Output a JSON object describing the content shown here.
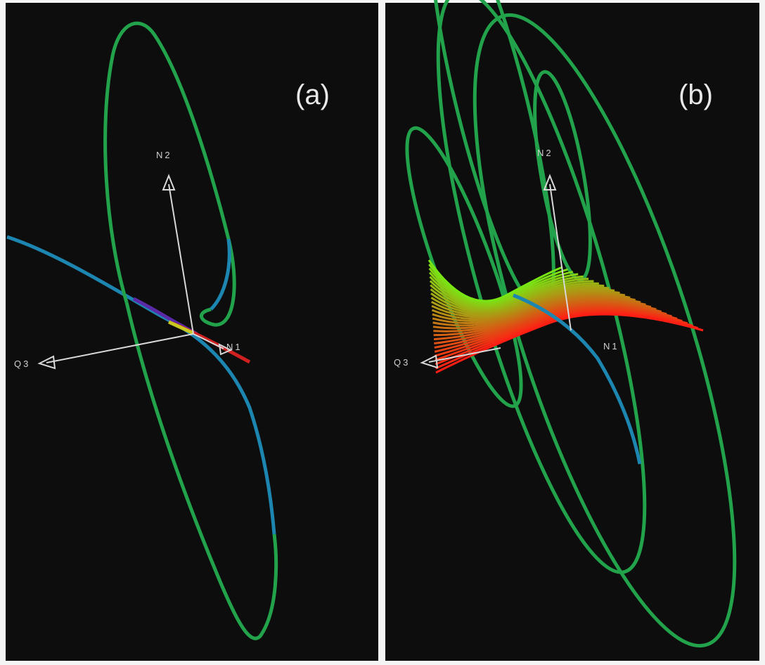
{
  "panels": [
    {
      "label": "(a)",
      "axes": {
        "n2": "N2",
        "q3": "Q3",
        "n1": "N1"
      }
    },
    {
      "label": "(b)",
      "axes": {
        "n2": "N2",
        "q3": "Q3",
        "n1": "N1"
      }
    }
  ]
}
